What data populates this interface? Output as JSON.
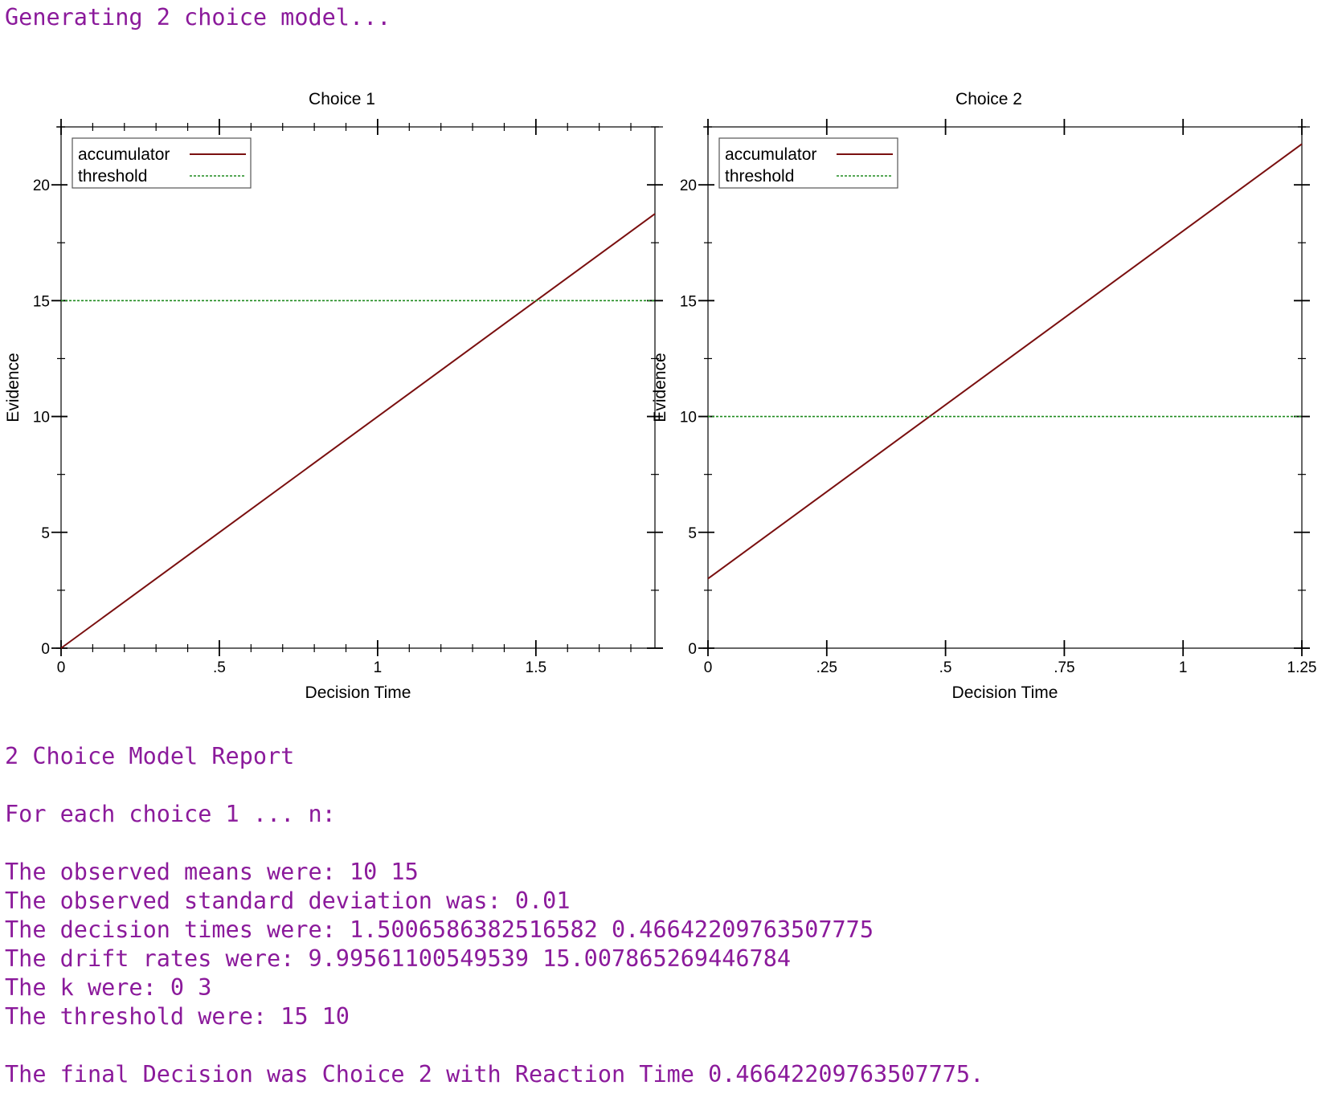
{
  "console": {
    "header": "Generating 2 choice model...",
    "report": [
      "2 Choice Model Report",
      "",
      "For each choice 1 ... n:",
      "",
      "The observed means were: 10 15",
      "The observed standard deviation was: 0.01",
      "The decision times were: 1.5006586382516582 0.46642209763507775",
      "The drift rates were: 9.99561100549539 15.007865269446784",
      "The k were: 0 3",
      "The threshold were: 15 10",
      "",
      "The final Decision was Choice 2 with Reaction Time 0.46642209763507775."
    ]
  },
  "colors": {
    "console_text": "#8b1a9b",
    "accumulator": "#7a0f0f",
    "threshold": "#1e8a1e"
  },
  "chart_data": [
    {
      "type": "line",
      "title": "Choice 1",
      "xlabel": "Decision Time",
      "ylabel": "Evidence",
      "xlim": [
        0,
        1.8761
      ],
      "ylim": [
        0,
        22.5
      ],
      "x_ticks": [
        0,
        0.5,
        1,
        1.5
      ],
      "x_tick_labels": [
        "0",
        ".5",
        "1",
        "1.5"
      ],
      "x_minor_step": 0.1,
      "y_ticks": [
        0,
        5,
        10,
        15,
        20
      ],
      "y_tick_labels": [
        "0",
        "5",
        "10",
        "15",
        "20"
      ],
      "y_minor_step": 2.5,
      "legend": "top-left",
      "series": [
        {
          "name": "accumulator",
          "style": "solid",
          "x": [
            0,
            1.8761
          ],
          "y": [
            0,
            18.75
          ]
        },
        {
          "name": "threshold",
          "style": "dotted",
          "x": [
            0,
            1.8761
          ],
          "y": [
            15,
            15
          ]
        }
      ]
    },
    {
      "type": "line",
      "title": "Choice 2",
      "xlabel": "Decision Time",
      "ylabel": "Evidence",
      "xlim": [
        0,
        1.25
      ],
      "ylim": [
        0,
        22.5
      ],
      "x_ticks": [
        0,
        0.25,
        0.5,
        0.75,
        1,
        1.25
      ],
      "x_tick_labels": [
        "0",
        ".25",
        ".5",
        ".75",
        "1",
        "1.25"
      ],
      "x_minor_step": null,
      "y_ticks": [
        0,
        5,
        10,
        15,
        20
      ],
      "y_tick_labels": [
        "0",
        "5",
        "10",
        "15",
        "20"
      ],
      "y_minor_step": 2.5,
      "legend": "top-left",
      "series": [
        {
          "name": "accumulator",
          "style": "solid",
          "x": [
            0,
            1.25
          ],
          "y": [
            3,
            21.76
          ]
        },
        {
          "name": "threshold",
          "style": "dotted",
          "x": [
            0,
            1.25
          ],
          "y": [
            10,
            10
          ]
        }
      ]
    }
  ]
}
